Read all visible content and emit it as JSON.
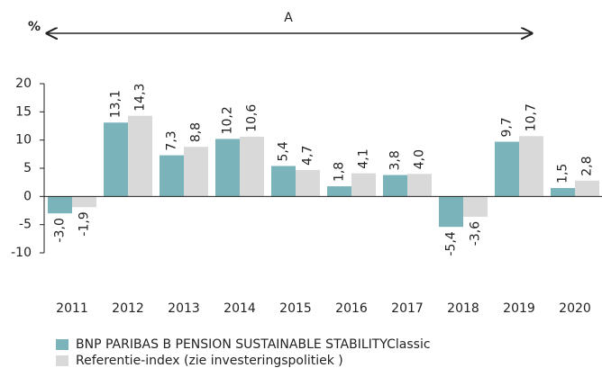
{
  "chart_data": {
    "type": "bar",
    "y_label": "%",
    "annotation": "A",
    "categories": [
      "2011",
      "2012",
      "2013",
      "2014",
      "2015",
      "2016",
      "2017",
      "2018",
      "2019",
      "2020"
    ],
    "series": [
      {
        "name": "BNP PARIBAS B PENSION SUSTAINABLE STABILITYClassic",
        "color": "#7ab3b9",
        "values": [
          -3.0,
          13.1,
          7.3,
          10.2,
          5.4,
          1.8,
          3.8,
          -5.4,
          9.7,
          1.5
        ],
        "value_labels": [
          "-3,0",
          "13,1",
          "7,3",
          "10,2",
          "5,4",
          "1,8",
          "3,8",
          "-5,4",
          "9,7",
          "1,5"
        ]
      },
      {
        "name": "Referentie-index (zie investeringspolitiek )",
        "color": "#d9d9d9",
        "values": [
          -1.9,
          14.3,
          8.8,
          10.6,
          4.7,
          4.1,
          4.0,
          -3.6,
          10.7,
          2.8
        ],
        "value_labels": [
          "-1,9",
          "14,3",
          "8,8",
          "10,6",
          "4,7",
          "4,1",
          "4,0",
          "-3,6",
          "10,7",
          "2,8"
        ]
      }
    ],
    "ylim": [
      -10,
      20
    ],
    "yticks": [
      20,
      15,
      10,
      5,
      0,
      -5,
      -10
    ]
  }
}
